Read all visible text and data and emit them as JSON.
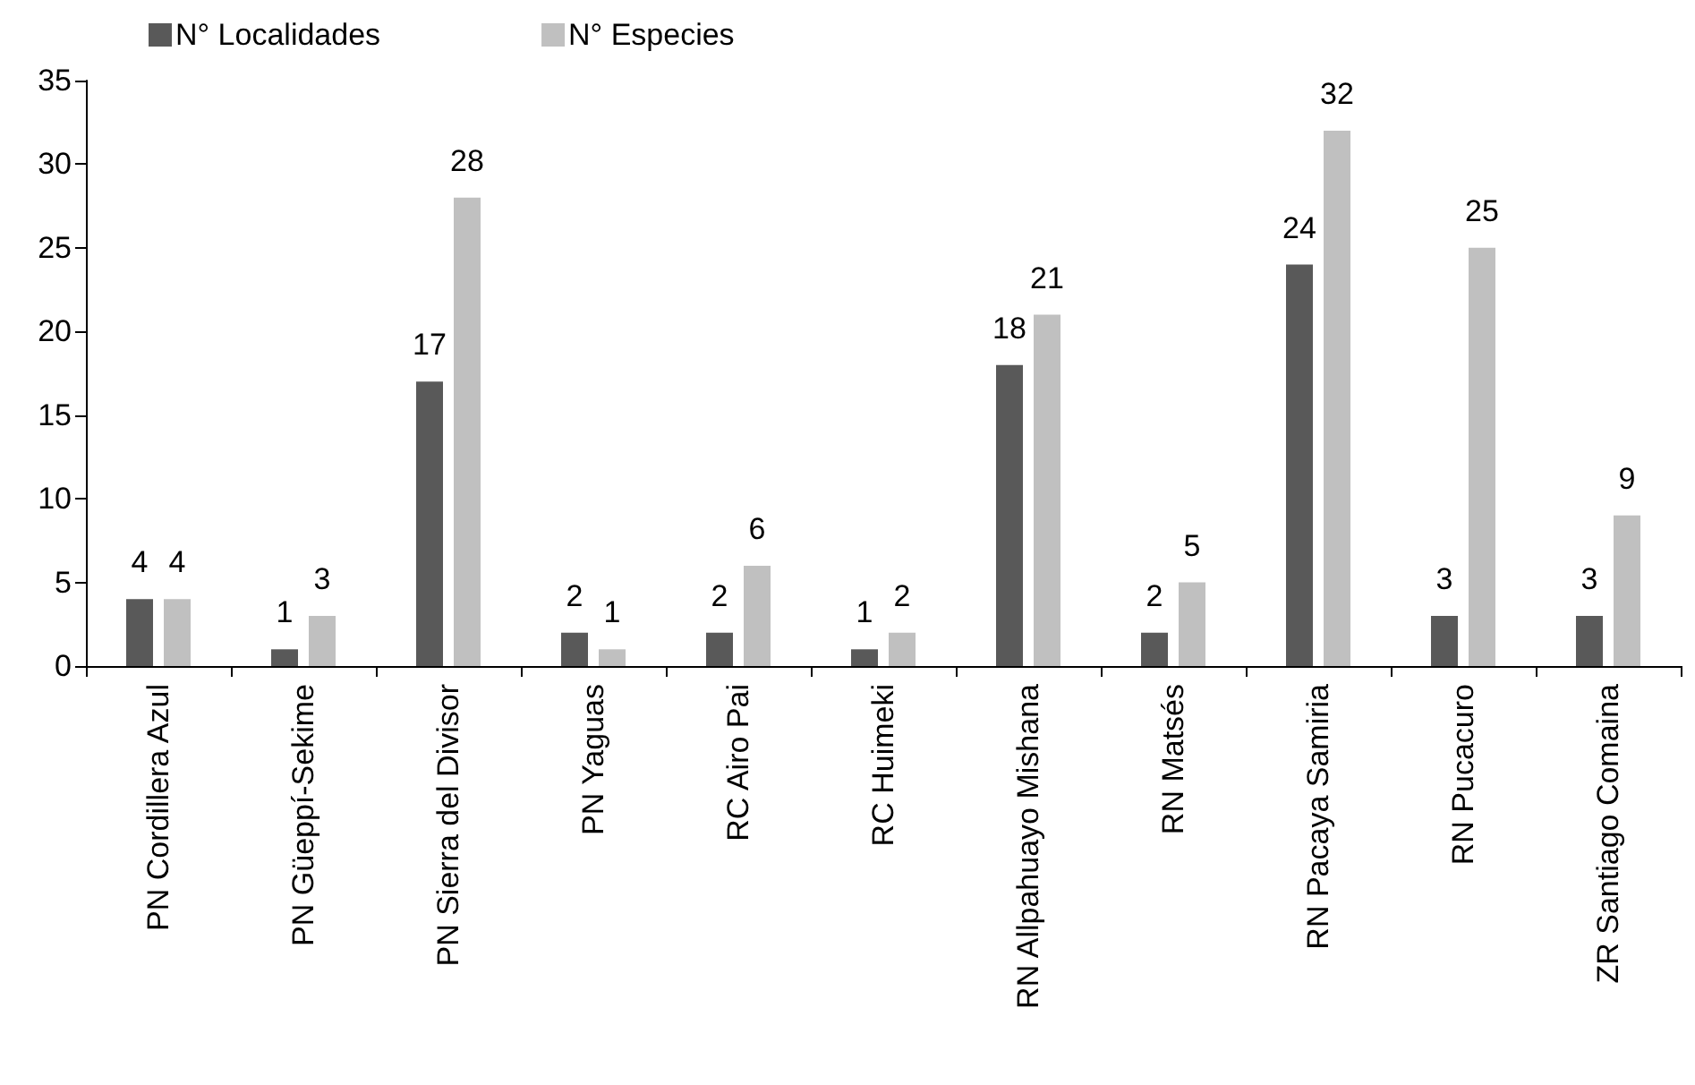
{
  "chart_data": {
    "type": "bar",
    "categories": [
      "PN Cordillera Azul",
      "PN Güeppí-Sekime",
      "PN Sierra del Divisor",
      "PN Yaguas",
      "RC Airo Pai",
      "RC Huimeki",
      "RN Allpahuayo Mishana",
      "RN Matsés",
      "RN Pacaya Samiria",
      "RN Pucacuro",
      "ZR Santiago Comaina"
    ],
    "series": [
      {
        "name": "N° Localidades",
        "color": "#595959",
        "values": [
          4,
          1,
          17,
          2,
          2,
          1,
          18,
          2,
          24,
          3,
          3
        ]
      },
      {
        "name": "N° Especies",
        "color": "#c0c0c0",
        "values": [
          4,
          3,
          28,
          1,
          6,
          2,
          21,
          5,
          32,
          25,
          9
        ]
      }
    ],
    "ylim": [
      0,
      35
    ],
    "yticks": [
      0,
      5,
      10,
      15,
      20,
      25,
      30,
      35
    ],
    "data_labels": true,
    "grid": false,
    "legend": "top left"
  }
}
